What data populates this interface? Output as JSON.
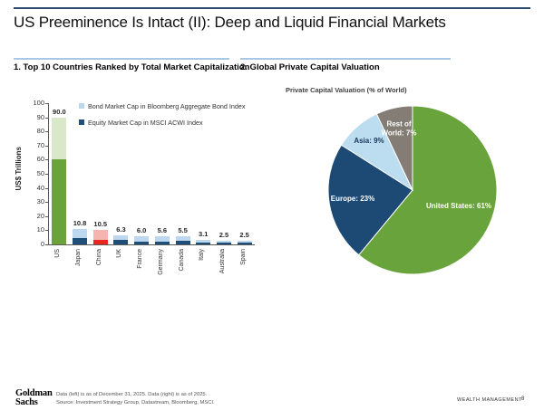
{
  "page": {
    "title": "US Preeminence Is Intact (II): Deep and Liquid Financial Markets"
  },
  "footer": {
    "logo_line1": "Goldman",
    "logo_line2": "Sachs",
    "note_line1": "Data (left) is as of December 31, 2025. Data (right) is as of 2025.",
    "note_line2": "Source: Investment Strategy Group, Datastream, Bloomberg, MSCI.",
    "brand": "WEALTH MANAGEMENT",
    "page_number": "8"
  },
  "chart_data": [
    {
      "type": "bar",
      "panel_title": "1. Top 10 Countries Ranked by Total Market Capitalization",
      "ylabel": "US$ Trillions",
      "ylim": [
        0,
        100
      ],
      "ytick_step": 10,
      "grid": false,
      "legend_position": "top-right-inside",
      "categories": [
        "US",
        "Japan",
        "China",
        "UK",
        "France",
        "Germany",
        "Canada",
        "Italy",
        "Australia",
        "Spain"
      ],
      "totals": [
        90.0,
        10.8,
        10.5,
        6.3,
        6.0,
        5.6,
        5.5,
        3.1,
        2.5,
        2.5
      ],
      "total_labels": [
        "90.0",
        "10.8",
        "10.5",
        "6.3",
        "6.0",
        "5.6",
        "5.5",
        "3.1",
        "2.5",
        "2.5"
      ],
      "series": [
        {
          "name": "Equity Market Cap in MSCI ACWI Index",
          "values": [
            60.0,
            4.8,
            3.0,
            3.2,
            2.2,
            2.0,
            2.5,
            1.0,
            1.5,
            1.1
          ]
        },
        {
          "name": "Bond Market Cap in Bloomberg Aggregate Bond Index",
          "values": [
            30.0,
            6.0,
            7.5,
            3.1,
            3.8,
            3.6,
            3.0,
            2.1,
            1.0,
            1.4
          ]
        }
      ],
      "legend": [
        {
          "label": "Bond Market Cap in Bloomberg Aggregate Bond Index",
          "color": "#bdd7ee"
        },
        {
          "label": "Equity Market Cap in MSCI ACWI Index",
          "color": "#1f4e79"
        }
      ],
      "equity_colors": [
        "#6aa23c",
        "#1f4e79",
        "#e8281f",
        "#1f4e79",
        "#1f4e79",
        "#1f4e79",
        "#1f4e79",
        "#1f4e79",
        "#1f4e79",
        "#1f4e79"
      ],
      "bond_colors": [
        "#d9e8c8",
        "#bdd7ee",
        "#f7b3af",
        "#bdd7ee",
        "#bdd7ee",
        "#bdd7ee",
        "#bdd7ee",
        "#bdd7ee",
        "#bdd7ee",
        "#bdd7ee"
      ]
    },
    {
      "type": "pie",
      "panel_title": "2. Global Private Capital Valuation",
      "subtitle": "Private Capital Valuation (% of World)",
      "start_angle_deg": 0,
      "direction": "clockwise",
      "slices": [
        {
          "label": "United States",
          "value": 61,
          "color": "#69a33b",
          "text_color": "#ffffff",
          "label_r": 0.58,
          "label_w": 86
        },
        {
          "label": "Europe",
          "value": 23,
          "color": "#1c4a74",
          "text_color": "#ffffff",
          "label_r": 0.72,
          "label_w": 56
        },
        {
          "label": "Asia",
          "value": 9,
          "color": "#bcdcf0",
          "text_color": "#16365c",
          "label_r": 0.78,
          "label_w": 40
        },
        {
          "label": "Rest of World",
          "value": 7,
          "color": "#837d75",
          "text_color": "#ffffff",
          "label_r": 0.74,
          "label_w": 48
        }
      ]
    }
  ]
}
